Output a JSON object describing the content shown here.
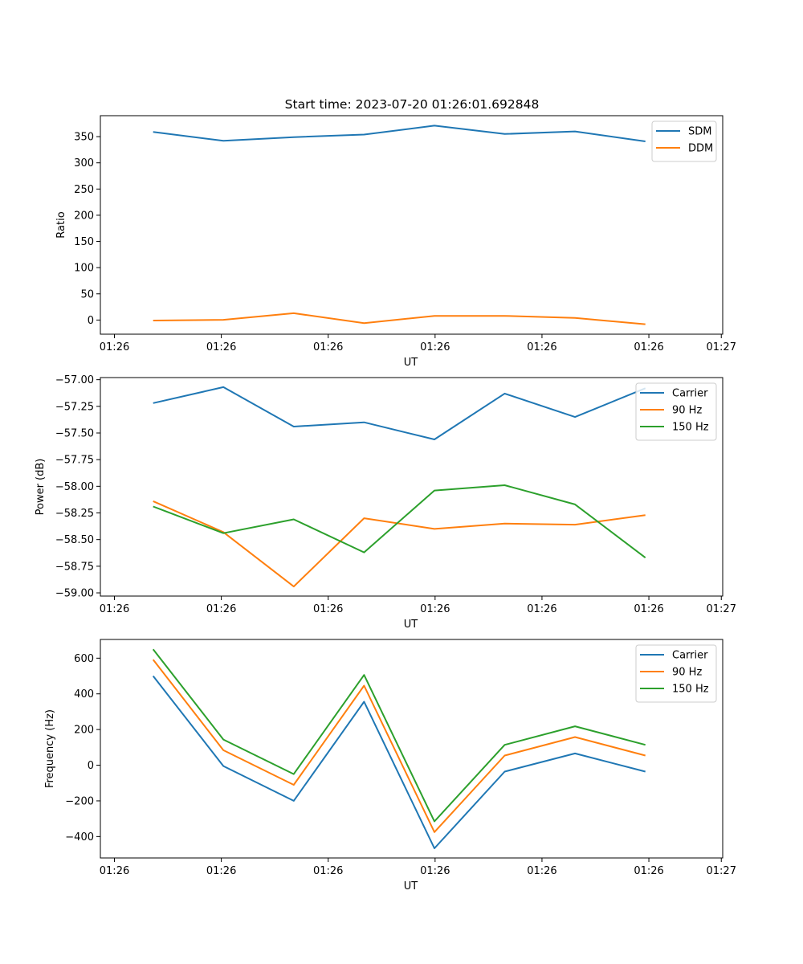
{
  "chart_data": [
    {
      "type": "line",
      "title": "Start time: 2023-07-20 01:26:01.692848",
      "xlabel": "UT",
      "ylabel": "Ratio",
      "x": [
        1,
        2,
        3,
        4,
        5,
        6,
        7,
        8
      ],
      "xlim": [
        0.25,
        9.1
      ],
      "xticks": [
        0.45,
        1.97,
        3.49,
        5.01,
        6.53,
        8.05,
        9.08
      ],
      "xticklabels": [
        "01:26",
        "01:26",
        "01:26",
        "01:26",
        "01:26",
        "01:26",
        "01:27"
      ],
      "ylim": [
        -27,
        390
      ],
      "yticks": [
        0,
        50,
        100,
        150,
        200,
        250,
        300,
        350
      ],
      "yticklabels": [
        "0",
        "50",
        "100",
        "150",
        "200",
        "250",
        "300",
        "350"
      ],
      "legend": "top-right",
      "grid": false,
      "series": [
        {
          "name": "SDM",
          "color": "#1f77b4",
          "values": [
            359,
            342,
            349,
            354,
            371,
            355,
            360,
            341
          ]
        },
        {
          "name": "DDM",
          "color": "#ff7f0e",
          "values": [
            -1,
            0.5,
            13,
            -6,
            8,
            8,
            4,
            -8
          ]
        }
      ]
    },
    {
      "type": "line",
      "xlabel": "UT",
      "ylabel": "Power (dB)",
      "x": [
        1,
        2,
        3,
        4,
        5,
        6,
        7,
        8
      ],
      "xlim": [
        0.25,
        9.1
      ],
      "xticks": [
        0.45,
        1.97,
        3.49,
        5.01,
        6.53,
        8.05,
        9.08
      ],
      "xticklabels": [
        "01:26",
        "01:26",
        "01:26",
        "01:26",
        "01:26",
        "01:26",
        "01:27"
      ],
      "ylim": [
        -59.03,
        -56.98
      ],
      "yticks": [
        -57.0,
        -57.25,
        -57.5,
        -57.75,
        -58.0,
        -58.25,
        -58.5,
        -58.75,
        -59.0
      ],
      "yticklabels": [
        "−57.00",
        "−57.25",
        "−57.50",
        "−57.75",
        "−58.00",
        "−58.25",
        "−58.50",
        "−58.75",
        "−59.00"
      ],
      "legend": "top-right",
      "grid": false,
      "series": [
        {
          "name": "Carrier",
          "color": "#1f77b4",
          "values": [
            -57.22,
            -57.07,
            -57.44,
            -57.4,
            -57.56,
            -57.13,
            -57.35,
            -57.08
          ]
        },
        {
          "name": "90 Hz",
          "color": "#ff7f0e",
          "values": [
            -58.14,
            -58.43,
            -58.94,
            -58.3,
            -58.4,
            -58.35,
            -58.36,
            -58.27
          ]
        },
        {
          "name": "150 Hz",
          "color": "#2ca02c",
          "values": [
            -58.19,
            -58.44,
            -58.31,
            -58.62,
            -58.04,
            -57.99,
            -58.17,
            -58.67
          ]
        }
      ]
    },
    {
      "type": "line",
      "xlabel": "UT",
      "ylabel": "Frequency (Hz)",
      "x": [
        1,
        2,
        3,
        4,
        5,
        6,
        7,
        8
      ],
      "xlim": [
        0.25,
        9.1
      ],
      "xticks": [
        0.45,
        1.97,
        3.49,
        5.01,
        6.53,
        8.05,
        9.08
      ],
      "xticklabels": [
        "01:26",
        "01:26",
        "01:26",
        "01:26",
        "01:26",
        "01:26",
        "01:27"
      ],
      "ylim": [
        -520,
        705
      ],
      "yticks": [
        -400,
        -200,
        0,
        200,
        400,
        600
      ],
      "yticklabels": [
        "−400",
        "−200",
        "0",
        "200",
        "400",
        "600"
      ],
      "legend": "top-right",
      "grid": false,
      "series": [
        {
          "name": "Carrier",
          "color": "#1f77b4",
          "values": [
            500,
            -5,
            -200,
            356,
            -466,
            -36,
            66,
            -36
          ]
        },
        {
          "name": "90 Hz",
          "color": "#ff7f0e",
          "values": [
            592,
            84,
            -110,
            446,
            -375,
            54,
            158,
            54
          ]
        },
        {
          "name": "150 Hz",
          "color": "#2ca02c",
          "values": [
            650,
            144,
            -50,
            506,
            -315,
            114,
            218,
            114
          ]
        }
      ]
    }
  ]
}
